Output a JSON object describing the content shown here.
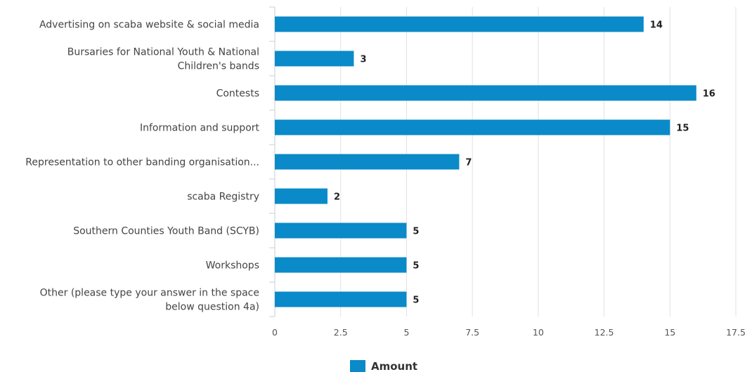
{
  "chart_data": {
    "type": "bar",
    "orientation": "horizontal",
    "categories": [
      [
        "Advertising on scaba website & social media"
      ],
      [
        "Bursaries for National Youth & National",
        "Children's bands"
      ],
      [
        "Contests"
      ],
      [
        "Information and support"
      ],
      [
        "Representation to other banding organisation..."
      ],
      [
        "scaba Registry"
      ],
      [
        "Southern Counties Youth Band (SCYB)"
      ],
      [
        "Workshops"
      ],
      [
        "Other (please type your answer in the space",
        "below question 4a)"
      ]
    ],
    "series": [
      {
        "name": "Amount",
        "values": [
          14,
          3,
          16,
          15,
          7,
          2,
          5,
          5,
          5
        ],
        "color": "#0a8ac8"
      }
    ],
    "xlim": [
      0,
      17.5
    ],
    "xticks": [
      "0",
      "2.5",
      "5",
      "7.5",
      "10",
      "12.5",
      "15",
      "17.5"
    ],
    "grid": true,
    "legend": "bottom-center"
  }
}
